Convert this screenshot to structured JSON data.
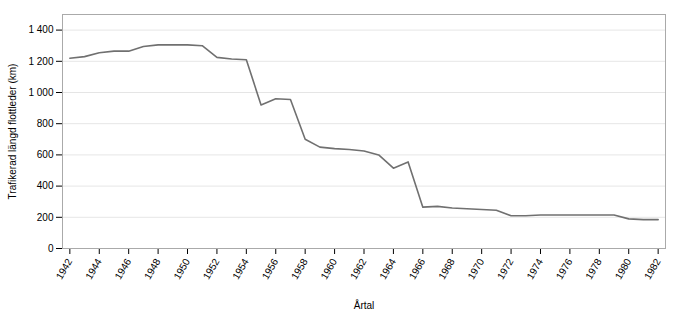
{
  "chart_data": {
    "type": "line",
    "xlabel": "Årtal",
    "ylabel": "Trafikerad längd flottleder (km)",
    "x": [
      1942,
      1943,
      1944,
      1945,
      1946,
      1947,
      1948,
      1949,
      1950,
      1951,
      1952,
      1953,
      1954,
      1955,
      1956,
      1957,
      1958,
      1959,
      1960,
      1961,
      1962,
      1963,
      1964,
      1965,
      1966,
      1967,
      1968,
      1969,
      1970,
      1971,
      1972,
      1973,
      1974,
      1975,
      1976,
      1977,
      1978,
      1979,
      1980,
      1981,
      1982
    ],
    "values": [
      1220,
      1230,
      1255,
      1265,
      1265,
      1295,
      1305,
      1305,
      1305,
      1300,
      1225,
      1215,
      1210,
      920,
      960,
      955,
      700,
      650,
      640,
      635,
      625,
      600,
      515,
      555,
      265,
      270,
      260,
      255,
      250,
      245,
      210,
      210,
      215,
      215,
      215,
      215,
      215,
      215,
      190,
      185,
      185
    ],
    "color": "#707070",
    "xlim": [
      1941.5,
      1982.5
    ],
    "ylim": [
      0,
      1500
    ],
    "xticks": [
      1942,
      1944,
      1946,
      1948,
      1950,
      1952,
      1954,
      1956,
      1958,
      1960,
      1962,
      1964,
      1966,
      1968,
      1970,
      1972,
      1974,
      1976,
      1978,
      1980,
      1982
    ],
    "yticks": [
      0,
      200,
      400,
      600,
      800,
      {
        "value": 1000,
        "label": "1 000"
      },
      {
        "value": 1200,
        "label": "1 200"
      },
      {
        "value": 1400,
        "label": "1 400"
      }
    ],
    "grid": true
  }
}
